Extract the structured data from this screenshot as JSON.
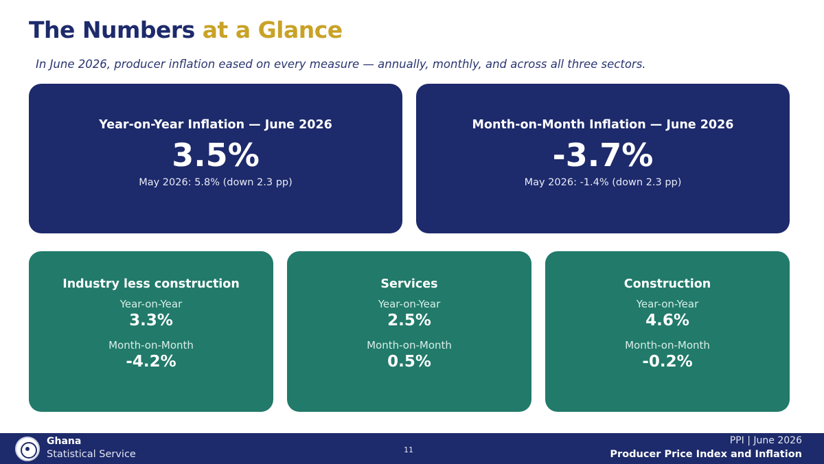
{
  "header": {
    "title_main": "The Numbers ",
    "title_accent": "at a Glance",
    "subtitle": "In June 2026, producer inflation eased on every measure — annually, monthly, and across all three sectors."
  },
  "headline_cards": [
    {
      "label": "Year-on-Year Inflation — June 2026",
      "value": "3.5%",
      "note": "May 2026: 5.8%  (down 2.3 pp)"
    },
    {
      "label": "Month-on-Month Inflation — June 2026",
      "value": "-3.7%",
      "note": "May 2026: -1.4%  (down 2.3 pp)"
    }
  ],
  "sectors": [
    {
      "name": "Industry less construction",
      "yoy_label": "Year-on-Year",
      "yoy_value": "3.3%",
      "mom_label": "Month-on-Month",
      "mom_value": "-4.2%"
    },
    {
      "name": "Services",
      "yoy_label": "Year-on-Year",
      "yoy_value": "2.5%",
      "mom_label": "Month-on-Month",
      "mom_value": "0.5%"
    },
    {
      "name": "Construction",
      "yoy_label": "Year-on-Year",
      "yoy_value": "4.6%",
      "mom_label": "Month-on-Month",
      "mom_value": "-0.2%"
    }
  ],
  "footer": {
    "org_name": "Ghana",
    "org_sub": "Statistical Service",
    "page_number": "11",
    "report_meta": "PPI | June 2026",
    "report_title": "Producer Price Index and Inflation",
    "logo_icon": "ghana-statistical-service-seal-icon"
  },
  "colors": {
    "navy": "#1d2a6b",
    "gold": "#c9a227",
    "green": "#217a6a"
  }
}
